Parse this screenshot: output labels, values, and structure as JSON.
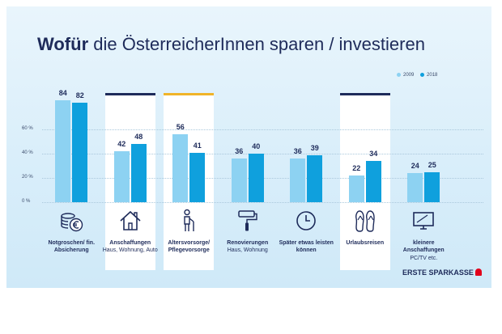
{
  "title_bold": "Wofür",
  "title_rest": "die ÖsterreicherInnen sparen / investieren",
  "brand": "ERSTE SPARKASSE",
  "colors": {
    "series2009": "#8dd2f2",
    "series2018": "#0fa0dd",
    "navy": "#1e2b5a",
    "gold": "#f0b429"
  },
  "chart_data": {
    "type": "bar",
    "y_unit": "%",
    "ylim": [
      0,
      90
    ],
    "y_ticks": [
      {
        "value": 0,
        "label": "0 %"
      },
      {
        "value": 20,
        "label": "20 %"
      },
      {
        "value": 40,
        "label": "40 %"
      },
      {
        "value": 60,
        "label": "60 %"
      }
    ],
    "legend_placement": "top-right",
    "series": [
      {
        "name": "2009",
        "color": "#8dd2f2",
        "values": [
          84,
          42,
          56,
          36,
          36,
          22,
          24
        ]
      },
      {
        "name": "2018",
        "color": "#0fa0dd",
        "values": [
          82,
          48,
          41,
          40,
          39,
          34,
          25
        ]
      }
    ],
    "categories": [
      {
        "title": "Notgroschen/ fin. Absicherung",
        "subtitle": "",
        "icon": "coins-euro-icon",
        "highlight": "none"
      },
      {
        "title": "Anschaffungen",
        "subtitle": "Haus, Wohnung, Auto",
        "icon": "house-icon",
        "highlight": "navy"
      },
      {
        "title": "Altersvorsorge/ Pflegevorsorge",
        "subtitle": "",
        "icon": "elderly-person-icon",
        "highlight": "gold"
      },
      {
        "title": "Renovierungen",
        "subtitle": "Haus, Wohnung",
        "icon": "paint-roller-icon",
        "highlight": "none"
      },
      {
        "title": "Später etwas leisten können",
        "subtitle": "",
        "icon": "clock-icon",
        "highlight": "none"
      },
      {
        "title": "Urlaubsreisen",
        "subtitle": "",
        "icon": "flip-flops-icon",
        "highlight": "navy"
      },
      {
        "title": "kleinere Anschaffungen",
        "subtitle": "PC/TV etc.",
        "icon": "tv-icon",
        "highlight": "none"
      }
    ]
  }
}
